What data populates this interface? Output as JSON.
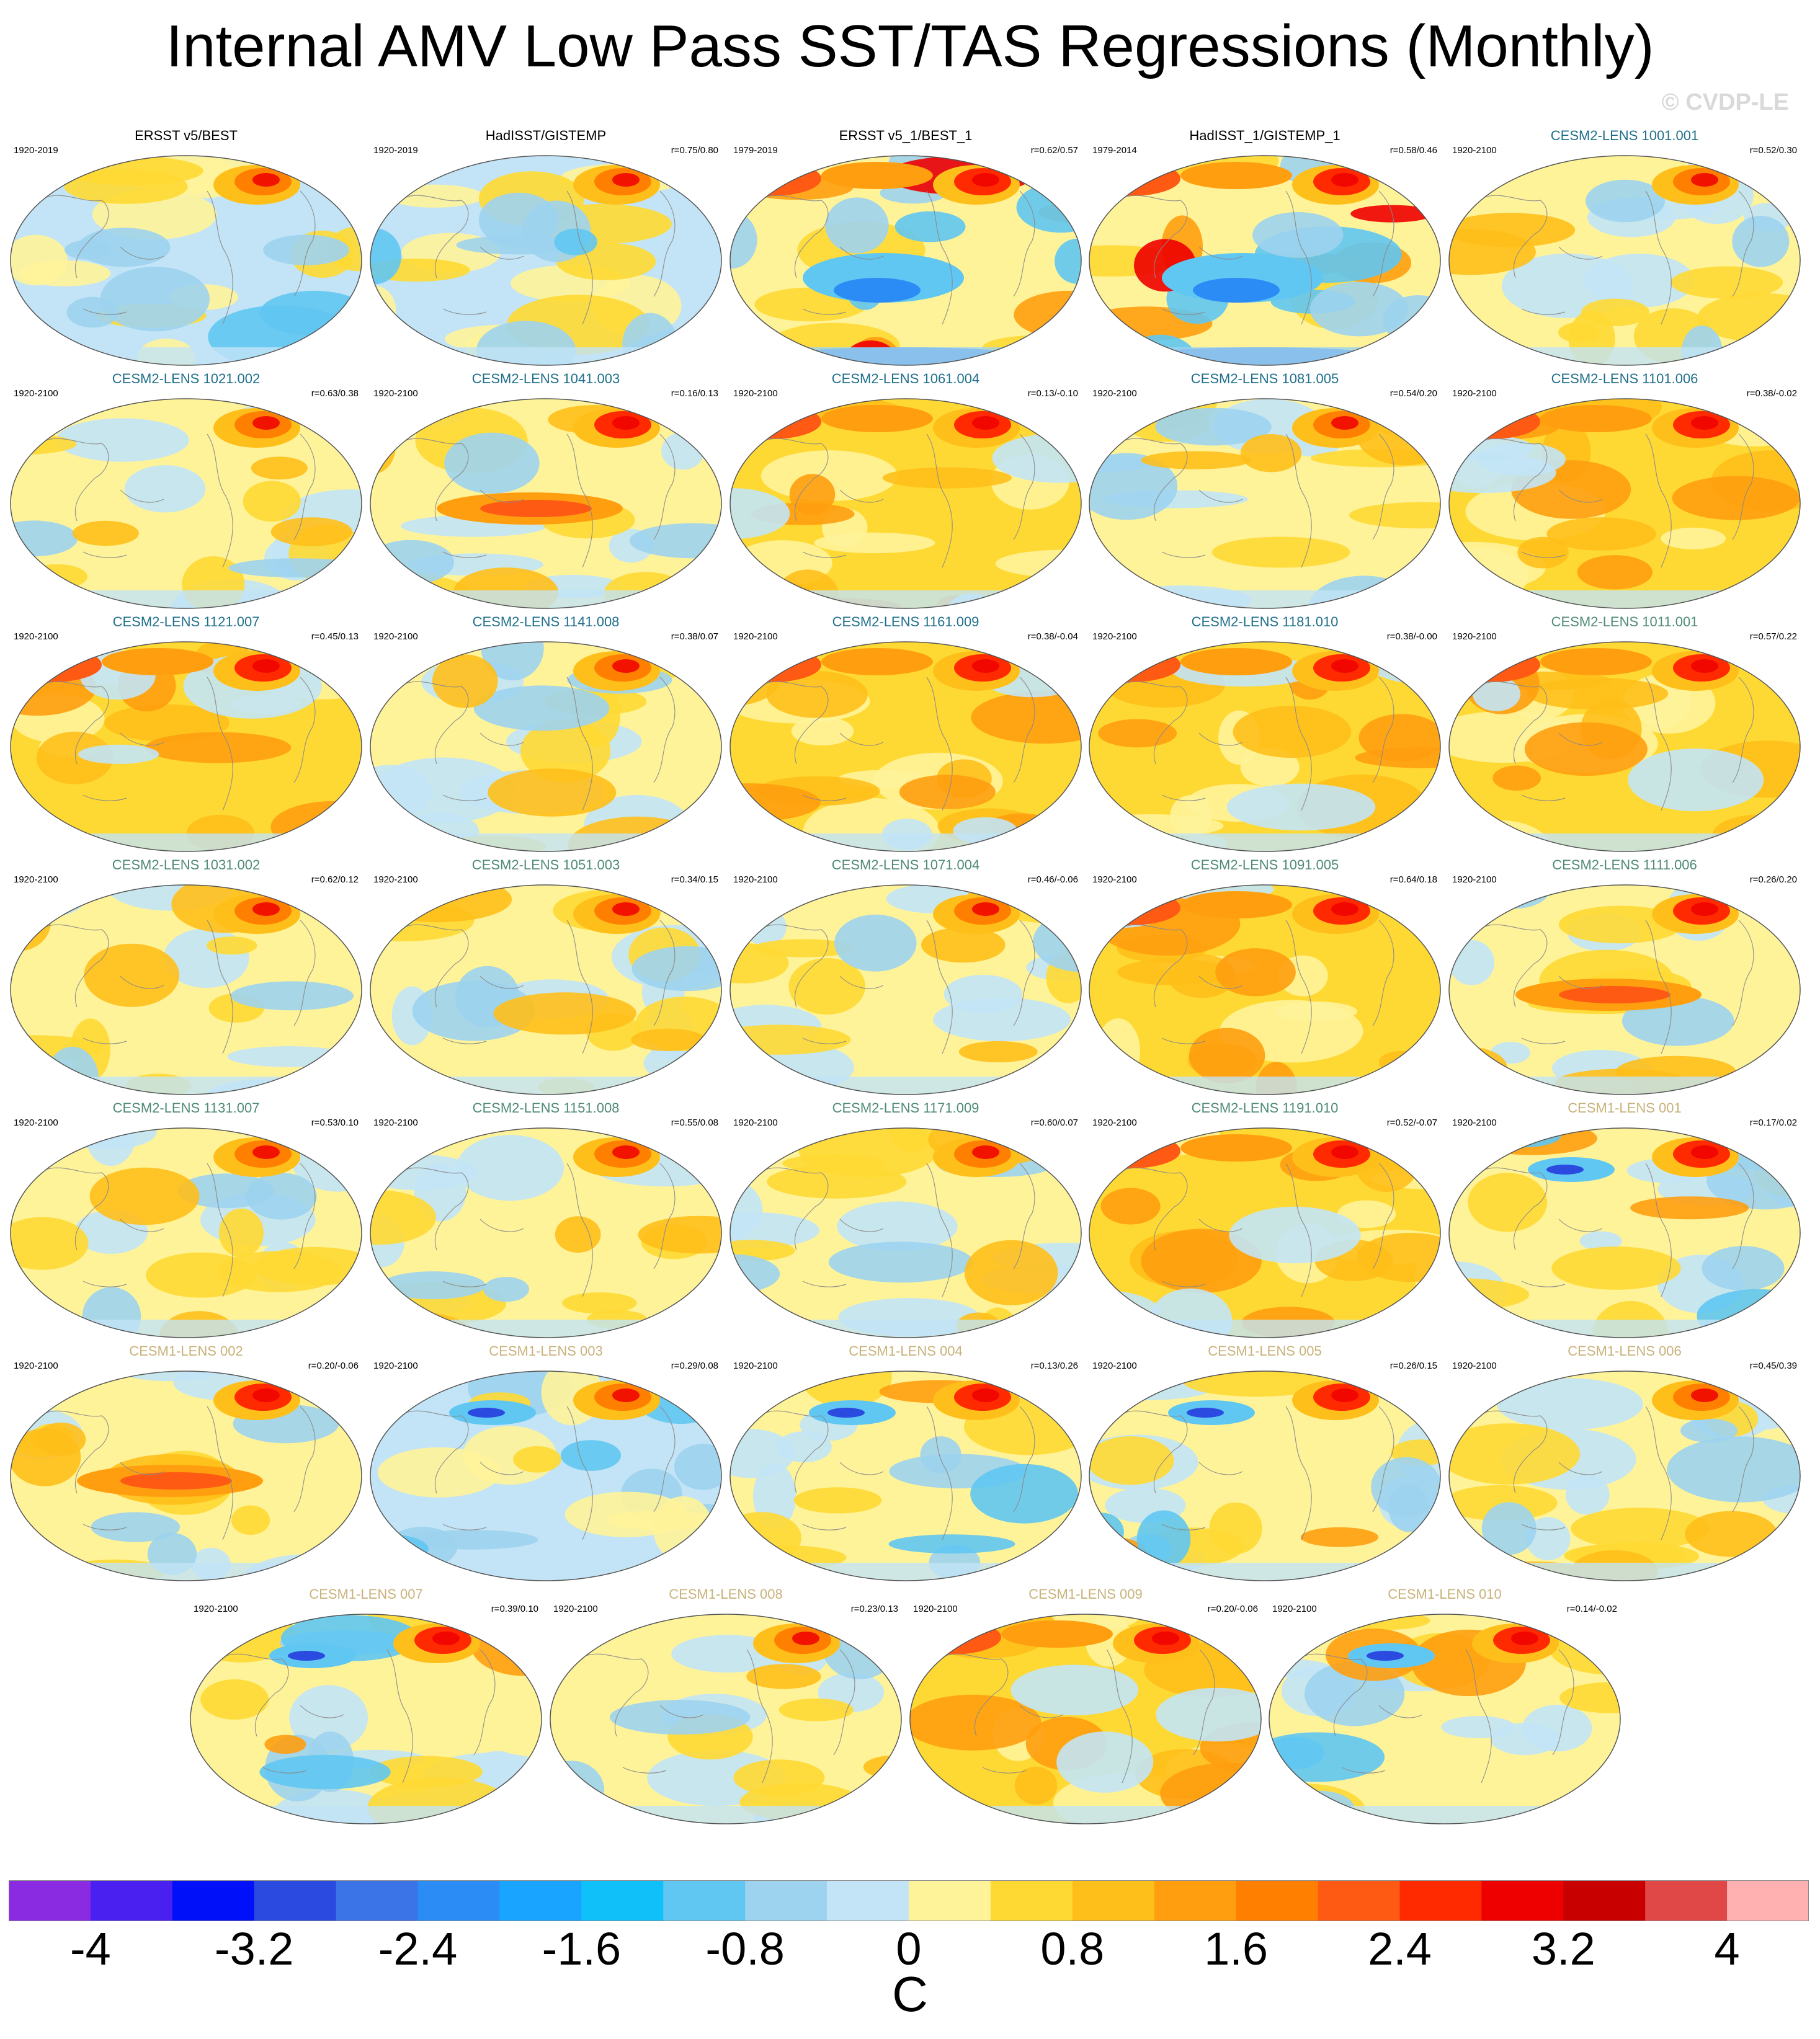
{
  "title": "Internal AMV Low Pass SST/TAS Regressions (Monthly)",
  "watermark": "© CVDP-LE",
  "colors": {
    "obs_title": "#000000",
    "cesm2_smbb_title": "#1f6f8b",
    "cesm2_cmip6_title": "#4f8a78",
    "cesm1_title": "#c8b27a"
  },
  "panels": [
    {
      "title": "ERSST v5/BEST",
      "period": "1920-2019",
      "corr": "",
      "group": "obs",
      "pattern": "obs_warm_na"
    },
    {
      "title": "HadISST/GISTEMP",
      "period": "1920-2019",
      "corr": "r=0.75/0.80",
      "group": "obs",
      "pattern": "obs_warm_na"
    },
    {
      "title": "ERSST v5_1/BEST_1",
      "period": "1979-2019",
      "corr": "r=0.62/0.57",
      "group": "obs",
      "pattern": "obs_recent"
    },
    {
      "title": "HadISST_1/GISTEMP_1",
      "period": "1979-2014",
      "corr": "r=0.58/0.46",
      "group": "obs",
      "pattern": "obs_recent"
    },
    {
      "title": "CESM2-LENS 1001.001",
      "period": "1920-2100",
      "corr": "r=0.52/0.30",
      "group": "cesm2a",
      "pattern": "mild"
    },
    {
      "title": "CESM2-LENS 1021.002",
      "period": "1920-2100",
      "corr": "r=0.63/0.38",
      "group": "cesm2a",
      "pattern": "mild"
    },
    {
      "title": "CESM2-LENS 1041.003",
      "period": "1920-2100",
      "corr": "r=0.16/0.13",
      "group": "cesm2a",
      "pattern": "enso_warm"
    },
    {
      "title": "CESM2-LENS 1061.004",
      "period": "1920-2100",
      "corr": "r=0.13/-0.10",
      "group": "cesm2a",
      "pattern": "warm"
    },
    {
      "title": "CESM2-LENS 1081.005",
      "period": "1920-2100",
      "corr": "r=0.54/0.20",
      "group": "cesm2a",
      "pattern": "mild"
    },
    {
      "title": "CESM2-LENS 1101.006",
      "period": "1920-2100",
      "corr": "r=0.38/-0.02",
      "group": "cesm2a",
      "pattern": "warm"
    },
    {
      "title": "CESM2-LENS 1121.007",
      "period": "1920-2100",
      "corr": "r=0.45/0.13",
      "group": "cesm2a",
      "pattern": "warm"
    },
    {
      "title": "CESM2-LENS 1141.008",
      "period": "1920-2100",
      "corr": "r=0.38/0.07",
      "group": "cesm2a",
      "pattern": "mild"
    },
    {
      "title": "CESM2-LENS 1161.009",
      "period": "1920-2100",
      "corr": "r=0.38/-0.04",
      "group": "cesm2a",
      "pattern": "warm"
    },
    {
      "title": "CESM2-LENS 1181.010",
      "period": "1920-2100",
      "corr": "r=0.38/-0.00",
      "group": "cesm2a",
      "pattern": "warm"
    },
    {
      "title": "CESM2-LENS 1011.001",
      "period": "1920-2100",
      "corr": "r=0.57/0.22",
      "group": "cesm2b",
      "pattern": "warm"
    },
    {
      "title": "CESM2-LENS 1031.002",
      "period": "1920-2100",
      "corr": "r=0.62/0.12",
      "group": "cesm2b",
      "pattern": "mild"
    },
    {
      "title": "CESM2-LENS 1051.003",
      "period": "1920-2100",
      "corr": "r=0.34/0.15",
      "group": "cesm2b",
      "pattern": "mild"
    },
    {
      "title": "CESM2-LENS 1071.004",
      "period": "1920-2100",
      "corr": "r=0.46/-0.06",
      "group": "cesm2b",
      "pattern": "mild"
    },
    {
      "title": "CESM2-LENS 1091.005",
      "period": "1920-2100",
      "corr": "r=0.64/0.18",
      "group": "cesm2b",
      "pattern": "warm"
    },
    {
      "title": "CESM2-LENS 1111.006",
      "period": "1920-2100",
      "corr": "r=0.26/0.20",
      "group": "cesm2b",
      "pattern": "enso_warm"
    },
    {
      "title": "CESM2-LENS 1131.007",
      "period": "1920-2100",
      "corr": "r=0.53/0.10",
      "group": "cesm2b",
      "pattern": "mild"
    },
    {
      "title": "CESM2-LENS 1151.008",
      "period": "1920-2100",
      "corr": "r=0.55/0.08",
      "group": "cesm2b",
      "pattern": "mild"
    },
    {
      "title": "CESM2-LENS 1171.009",
      "period": "1920-2100",
      "corr": "r=0.60/0.07",
      "group": "cesm2b",
      "pattern": "mild"
    },
    {
      "title": "CESM2-LENS 1191.010",
      "period": "1920-2100",
      "corr": "r=0.52/-0.07",
      "group": "cesm2b",
      "pattern": "warm"
    },
    {
      "title": "CESM1-LENS 001",
      "period": "1920-2100",
      "corr": "r=0.17/0.02",
      "group": "cesm1",
      "pattern": "mixed"
    },
    {
      "title": "CESM1-LENS 002",
      "period": "1920-2100",
      "corr": "r=0.20/-0.06",
      "group": "cesm1",
      "pattern": "enso_warm"
    },
    {
      "title": "CESM1-LENS 003",
      "period": "1920-2100",
      "corr": "r=0.29/0.08",
      "group": "cesm1",
      "pattern": "cool"
    },
    {
      "title": "CESM1-LENS 004",
      "period": "1920-2100",
      "corr": "r=0.13/0.26",
      "group": "cesm1",
      "pattern": "mixed"
    },
    {
      "title": "CESM1-LENS 005",
      "period": "1920-2100",
      "corr": "r=0.26/0.15",
      "group": "cesm1",
      "pattern": "mixed"
    },
    {
      "title": "CESM1-LENS 006",
      "period": "1920-2100",
      "corr": "r=0.45/0.39",
      "group": "cesm1",
      "pattern": "mild"
    },
    {
      "title": "CESM1-LENS 007",
      "period": "1920-2100",
      "corr": "r=0.39/0.10",
      "group": "cesm1",
      "pattern": "mixed"
    },
    {
      "title": "CESM1-LENS 008",
      "period": "1920-2100",
      "corr": "r=0.23/0.13",
      "group": "cesm1",
      "pattern": "mild"
    },
    {
      "title": "CESM1-LENS 009",
      "period": "1920-2100",
      "corr": "r=0.20/-0.06",
      "group": "cesm1",
      "pattern": "warm"
    },
    {
      "title": "CESM1-LENS 010",
      "period": "1920-2100",
      "corr": "r=0.14/-0.02",
      "group": "cesm1",
      "pattern": "mixed"
    }
  ],
  "colorbar": {
    "colors": [
      "#8a2be2",
      "#4a20f0",
      "#0010f8",
      "#2a4ae0",
      "#3a74e6",
      "#2c8cf5",
      "#18a4ff",
      "#10c0f8",
      "#60c6f2",
      "#9dd3ee",
      "#c2e4f6",
      "#fff39a",
      "#ffd933",
      "#ffbf1a",
      "#ff9f10",
      "#ff8000",
      "#ff5a14",
      "#ff2a00",
      "#ee0000",
      "#c80000",
      "#e04848",
      "#ffb0b0"
    ],
    "tick_labels": [
      "-4",
      "-3.2",
      "-2.4",
      "-1.6",
      "-0.8",
      "0",
      "0.8",
      "1.6",
      "2.4",
      "3.2",
      "4"
    ],
    "unit": "C",
    "min": -4.4,
    "max": 4.4
  }
}
